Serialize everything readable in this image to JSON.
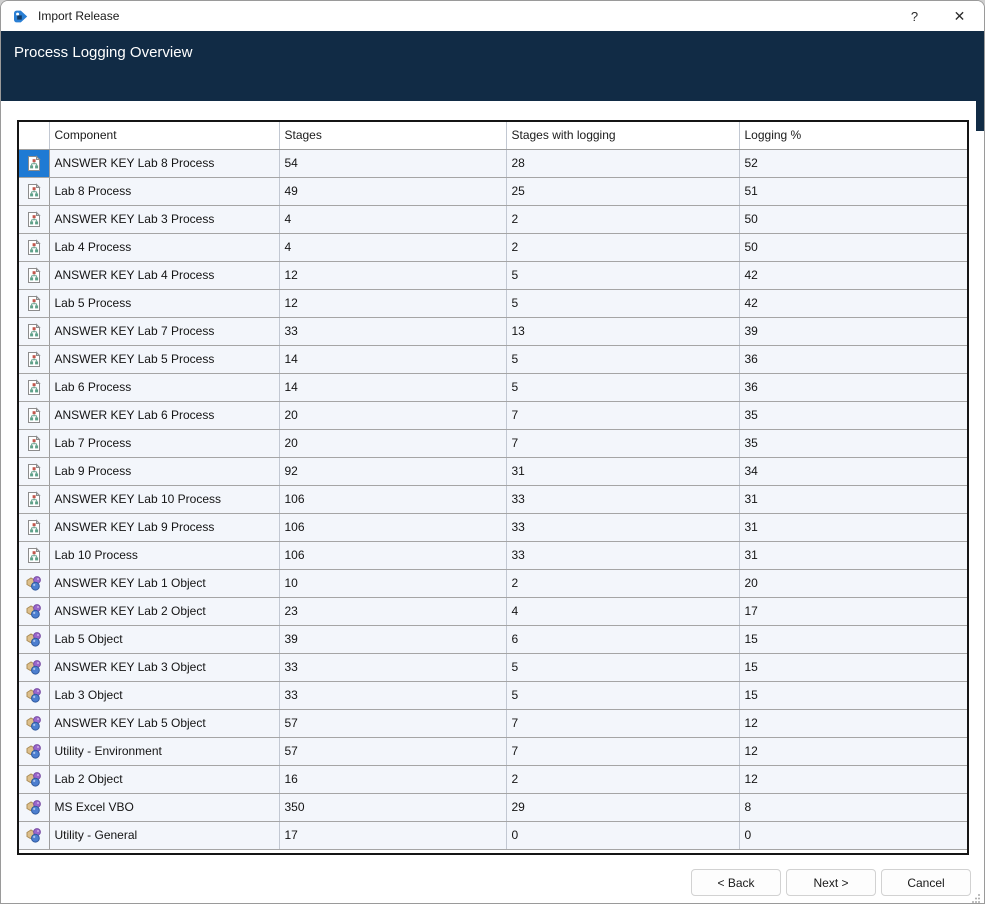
{
  "window": {
    "title": "Import Release",
    "help_label": "?",
    "close_label": "✕"
  },
  "header": {
    "title": "Process Logging Overview"
  },
  "table": {
    "columns": [
      "Component",
      "Stages",
      "Stages with logging",
      "Logging %"
    ],
    "rows": [
      {
        "icon": "process",
        "selected": true,
        "component": "ANSWER KEY Lab 8 Process",
        "stages": "54",
        "stages_with_logging": "28",
        "logging_pct": "52"
      },
      {
        "icon": "process",
        "selected": false,
        "component": "Lab 8 Process",
        "stages": "49",
        "stages_with_logging": "25",
        "logging_pct": "51"
      },
      {
        "icon": "process",
        "selected": false,
        "component": "ANSWER KEY Lab 3 Process",
        "stages": "4",
        "stages_with_logging": "2",
        "logging_pct": "50"
      },
      {
        "icon": "process",
        "selected": false,
        "component": "Lab 4 Process",
        "stages": "4",
        "stages_with_logging": "2",
        "logging_pct": "50"
      },
      {
        "icon": "process",
        "selected": false,
        "component": "ANSWER KEY Lab 4 Process",
        "stages": "12",
        "stages_with_logging": "5",
        "logging_pct": "42"
      },
      {
        "icon": "process",
        "selected": false,
        "component": "Lab 5 Process",
        "stages": "12",
        "stages_with_logging": "5",
        "logging_pct": "42"
      },
      {
        "icon": "process",
        "selected": false,
        "component": "ANSWER KEY Lab 7 Process",
        "stages": "33",
        "stages_with_logging": "13",
        "logging_pct": "39"
      },
      {
        "icon": "process",
        "selected": false,
        "component": "ANSWER KEY Lab 5 Process",
        "stages": "14",
        "stages_with_logging": "5",
        "logging_pct": "36"
      },
      {
        "icon": "process",
        "selected": false,
        "component": "Lab 6 Process",
        "stages": "14",
        "stages_with_logging": "5",
        "logging_pct": "36"
      },
      {
        "icon": "process",
        "selected": false,
        "component": "ANSWER KEY Lab 6 Process",
        "stages": "20",
        "stages_with_logging": "7",
        "logging_pct": "35"
      },
      {
        "icon": "process",
        "selected": false,
        "component": "Lab 7 Process",
        "stages": "20",
        "stages_with_logging": "7",
        "logging_pct": "35"
      },
      {
        "icon": "process",
        "selected": false,
        "component": "Lab 9 Process",
        "stages": "92",
        "stages_with_logging": "31",
        "logging_pct": "34"
      },
      {
        "icon": "process",
        "selected": false,
        "component": "ANSWER KEY Lab 10 Process",
        "stages": "106",
        "stages_with_logging": "33",
        "logging_pct": "31"
      },
      {
        "icon": "process",
        "selected": false,
        "component": "ANSWER KEY Lab 9 Process",
        "stages": "106",
        "stages_with_logging": "33",
        "logging_pct": "31"
      },
      {
        "icon": "process",
        "selected": false,
        "component": "Lab 10 Process",
        "stages": "106",
        "stages_with_logging": "33",
        "logging_pct": "31"
      },
      {
        "icon": "object",
        "selected": false,
        "component": "ANSWER KEY Lab 1 Object",
        "stages": "10",
        "stages_with_logging": "2",
        "logging_pct": "20"
      },
      {
        "icon": "object",
        "selected": false,
        "component": "ANSWER KEY Lab 2 Object",
        "stages": "23",
        "stages_with_logging": "4",
        "logging_pct": "17"
      },
      {
        "icon": "object",
        "selected": false,
        "component": "Lab 5 Object",
        "stages": "39",
        "stages_with_logging": "6",
        "logging_pct": "15"
      },
      {
        "icon": "object",
        "selected": false,
        "component": "ANSWER KEY Lab 3 Object",
        "stages": "33",
        "stages_with_logging": "5",
        "logging_pct": "15"
      },
      {
        "icon": "object",
        "selected": false,
        "component": "Lab 3 Object",
        "stages": "33",
        "stages_with_logging": "5",
        "logging_pct": "15"
      },
      {
        "icon": "object",
        "selected": false,
        "component": "ANSWER KEY Lab 5 Object",
        "stages": "57",
        "stages_with_logging": "7",
        "logging_pct": "12"
      },
      {
        "icon": "object",
        "selected": false,
        "component": "Utility - Environment",
        "stages": "57",
        "stages_with_logging": "7",
        "logging_pct": "12"
      },
      {
        "icon": "object",
        "selected": false,
        "component": "Lab 2 Object",
        "stages": "16",
        "stages_with_logging": "2",
        "logging_pct": "12"
      },
      {
        "icon": "object",
        "selected": false,
        "component": "MS Excel VBO",
        "stages": "350",
        "stages_with_logging": "29",
        "logging_pct": "8"
      },
      {
        "icon": "object",
        "selected": false,
        "component": "Utility - General",
        "stages": "17",
        "stages_with_logging": "0",
        "logging_pct": "0"
      }
    ]
  },
  "footer": {
    "back_label": "< Back",
    "next_label": "Next >",
    "cancel_label": "Cancel"
  },
  "colors": {
    "header_bg": "#112B45",
    "selection": "#1E7AD4",
    "row_bg": "#F3F6FB",
    "accent_blue": "#2A7FD4"
  }
}
